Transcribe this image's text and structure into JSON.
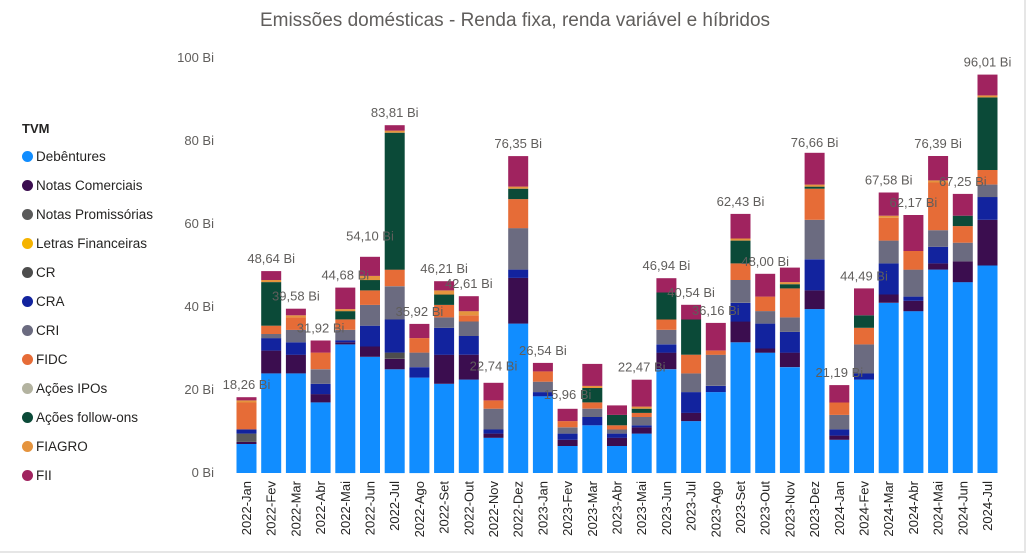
{
  "chart_data": {
    "type": "bar",
    "stacked": true,
    "title": "Emissões domésticas - Renda fixa, renda variável e híbridos",
    "legend_title": "TVM",
    "legend_position": "left",
    "y_ticks": [
      "0 Bi",
      "20 Bi",
      "40 Bi",
      "60 Bi",
      "80 Bi",
      "100 Bi"
    ],
    "ylim": [
      0,
      100
    ],
    "grid": false,
    "categories": [
      "2022-Jan",
      "2022-Fev",
      "2022-Mar",
      "2022-Abr",
      "2022-Mai",
      "2022-Jun",
      "2022-Jul",
      "2022-Ago",
      "2022-Set",
      "2022-Out",
      "2022-Nov",
      "2022-Dez",
      "2023-Jan",
      "2023-Fev",
      "2023-Mar",
      "2023-Abr",
      "2023-Mai",
      "2023-Jun",
      "2023-Jul",
      "2023-Ago",
      "2023-Set",
      "2023-Out",
      "2023-Nov",
      "2023-Dez",
      "2024-Jan",
      "2024-Fev",
      "2024-Mar",
      "2024-Abr",
      "2024-Mai",
      "2024-Jun",
      "2024-Jul"
    ],
    "totals": [
      "18,26 Bi",
      "48,64 Bi",
      "39,58 Bi",
      "31,92 Bi",
      "44,68 Bi",
      "54,10 Bi",
      "83,81 Bi",
      "35,92 Bi",
      "46,21 Bi",
      "42,61 Bi",
      "22,74 Bi",
      "76,35 Bi",
      "26,54 Bi",
      "15,96 Bi",
      "26,3 Bi",
      "16,3 Bi",
      "22,47 Bi",
      "46,94 Bi",
      "40,54 Bi",
      "36,16 Bi",
      "62,43 Bi",
      "48,00 Bi",
      "49,5 Bi",
      "76,66 Bi",
      "21,19 Bi",
      "44,49 Bi",
      "67,58 Bi",
      "62,17 Bi",
      "76,39 Bi",
      "67,25 Bi",
      "96,01 Bi"
    ],
    "total_values": [
      18.26,
      48.64,
      39.58,
      31.92,
      44.68,
      54.1,
      83.81,
      35.92,
      46.21,
      42.61,
      22.74,
      76.35,
      26.54,
      15.96,
      26.3,
      16.3,
      22.47,
      46.94,
      40.54,
      36.16,
      62.43,
      48.0,
      49.5,
      76.66,
      21.19,
      44.49,
      67.58,
      62.17,
      76.39,
      67.25,
      96.01
    ],
    "label_shown": [
      true,
      true,
      true,
      true,
      true,
      true,
      true,
      true,
      true,
      true,
      true,
      true,
      true,
      true,
      false,
      false,
      true,
      true,
      true,
      true,
      true,
      true,
      false,
      true,
      true,
      true,
      true,
      true,
      true,
      true,
      true
    ],
    "series": [
      {
        "name": "Debêntures",
        "color": "#118DFF",
        "values": [
          7,
          24,
          24,
          17,
          31,
          28,
          25,
          23,
          21.5,
          22.5,
          8.5,
          36,
          18.5,
          6.5,
          11.5,
          6.5,
          9.5,
          25,
          12.5,
          19.5,
          31.5,
          29,
          25.5,
          39.5,
          8,
          22.5,
          41,
          39,
          49,
          46,
          50
        ]
      },
      {
        "name": "Notas Comerciais",
        "color": "#3B0D4F",
        "values": [
          0.5,
          5.5,
          4.5,
          2,
          0.5,
          2.5,
          2.5,
          0,
          7,
          6,
          1,
          11,
          0,
          1.5,
          0,
          2,
          1.5,
          4,
          2,
          0,
          5,
          1,
          3.5,
          4.5,
          1,
          0,
          2,
          2.5,
          1.5,
          5,
          11
        ]
      },
      {
        "name": "Notas Promissórias",
        "color": "#5A5A5A",
        "values": [
          2,
          0,
          0,
          0,
          0,
          0,
          0,
          0,
          0,
          0,
          0,
          0,
          0,
          0,
          0,
          0,
          0,
          0,
          0,
          0,
          0,
          0,
          0,
          0,
          0,
          0,
          0,
          0,
          0,
          0,
          0
        ]
      },
      {
        "name": "Letras Financeiras",
        "color": "#F5B300",
        "values": [
          0,
          0,
          0,
          0,
          0,
          0,
          0,
          0,
          0,
          0,
          0,
          0,
          0,
          0,
          0,
          0,
          0,
          0,
          0,
          0,
          0,
          0,
          0,
          0,
          0,
          0,
          0,
          0,
          0,
          0,
          0
        ]
      },
      {
        "name": "CR",
        "color": "#4D4D4D",
        "values": [
          0,
          0,
          0,
          0,
          0,
          0,
          1.5,
          0,
          0,
          0,
          0,
          0,
          0,
          0,
          0,
          0,
          0,
          0,
          0,
          0,
          0,
          0,
          0,
          0,
          0,
          0,
          0,
          0,
          0,
          0,
          0
        ]
      },
      {
        "name": "CRA",
        "color": "#12239E",
        "values": [
          1,
          3,
          3,
          2.5,
          0.5,
          5,
          8,
          2.5,
          6.5,
          4.5,
          1,
          2,
          1,
          1.5,
          2,
          1,
          0.5,
          2,
          5,
          1.5,
          4.5,
          6,
          5,
          7.5,
          1.5,
          1.5,
          7.5,
          1,
          4,
          0,
          5.5
        ]
      },
      {
        "name": "CRI",
        "color": "#6B6B80",
        "values": [
          0,
          1,
          3,
          3.5,
          2.5,
          5,
          8,
          3.5,
          2.5,
          3.5,
          5,
          10,
          2.5,
          1.5,
          2,
          1,
          2,
          3.5,
          4.5,
          7.5,
          5.5,
          3,
          3.5,
          9.5,
          3.5,
          7,
          5.5,
          6.5,
          4,
          4.5,
          3
        ]
      },
      {
        "name": "FIDC",
        "color": "#E66C37",
        "values": [
          6.5,
          2,
          3,
          4,
          2.5,
          3.5,
          4,
          3.5,
          3,
          1.5,
          2,
          7,
          2.5,
          1.5,
          1.5,
          1,
          1,
          2.5,
          4.5,
          1,
          4,
          3.5,
          7,
          7.5,
          3,
          4,
          5.5,
          4.5,
          11.5,
          4,
          3.5
        ]
      },
      {
        "name": "Ações IPOs",
        "color": "#B3B3A0",
        "values": [
          0,
          0,
          0,
          0,
          0,
          0,
          0,
          0,
          0,
          0,
          0,
          0,
          0,
          0,
          0,
          0,
          0,
          0,
          0,
          0,
          0,
          0,
          0,
          0,
          0,
          0,
          0,
          0,
          0,
          0,
          0
        ]
      },
      {
        "name": "Ações follow-ons",
        "color": "#0B4A38",
        "values": [
          0,
          10.5,
          0,
          0,
          2,
          2.5,
          33,
          0,
          2.5,
          0,
          0,
          2.5,
          0,
          0,
          3.5,
          2.5,
          1,
          6.5,
          8.5,
          0,
          5.5,
          0,
          1,
          0.5,
          0,
          3,
          0,
          0,
          0,
          2.5,
          17.5
        ]
      },
      {
        "name": "FIAGRO",
        "color": "#E5943E",
        "values": [
          0.5,
          0.5,
          0.5,
          0,
          0.5,
          1,
          0.5,
          0,
          1,
          1,
          0,
          0.5,
          0,
          0,
          0.5,
          0,
          0.5,
          0,
          0,
          0,
          0.5,
          0,
          0.5,
          0.5,
          0,
          0,
          0.5,
          0,
          0.5,
          0,
          0.5
        ]
      },
      {
        "name": "FII",
        "color": "#A0235F",
        "values": [
          0.76,
          2.14,
          1.58,
          2.92,
          5.18,
          4.6,
          1.31,
          3.42,
          2.21,
          3.61,
          4.24,
          7.35,
          2.04,
          2.96,
          5.3,
          2.3,
          6.47,
          3.44,
          3.54,
          6.66,
          5.93,
          5.5,
          3.5,
          7.66,
          4.19,
          6.49,
          5.58,
          8.67,
          5.89,
          5.25,
          5.01
        ]
      }
    ]
  }
}
